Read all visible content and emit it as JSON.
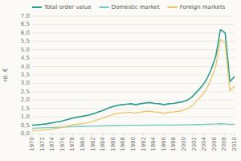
{
  "chart_data": {
    "type": "line",
    "y_label": "rd. €",
    "x": [
      1970,
      1970.9302325581,
      1971.8604651163,
      1972.7906976744,
      1973.7209302326,
      1974.6511627907,
      1975.5813953488,
      1976.511627907,
      1977.4418604651,
      1978.3720930233,
      1979.3023255814,
      1980.2325581395,
      1981.1627906977,
      1982.0930232558,
      1983.023255814,
      1983.9534883721,
      1984.8837209302,
      1985.8139534884,
      1986.7441860465,
      1987.6744186047,
      1988.6046511628,
      1989.5348837209,
      1990.4651162791,
      1991.3953488372,
      1992.3255813953,
      1993.2558139535,
      1994.1860465116,
      1995.1162790698,
      1996.0465116279,
      1996.976744186,
      1997.9069767442,
      1998.8372093023,
      1999.7674418605,
      2000.6976744186,
      2001.6279069767,
      2002.5581395349,
      2003.488372093,
      2004.4186046512,
      2005.3488372093,
      2006.2790697674,
      2007.2093023256,
      2008.1395348837,
      2009.0697674419,
      2010
    ],
    "series": [
      {
        "name": "Total order value",
        "color": "#2a9d8f",
        "values": [
          0.5,
          0.52,
          0.55,
          0.58,
          0.63,
          0.68,
          0.72,
          0.8,
          0.88,
          0.95,
          1.0,
          1.05,
          1.1,
          1.18,
          1.28,
          1.38,
          1.5,
          1.6,
          1.68,
          1.72,
          1.75,
          1.78,
          1.72,
          1.78,
          1.82,
          1.85,
          1.8,
          1.78,
          1.72,
          1.78,
          1.8,
          1.85,
          1.9,
          2.0,
          2.2,
          2.5,
          2.8,
          3.2,
          3.8,
          4.6,
          6.2,
          6.0,
          3.1,
          3.4
        ]
      },
      {
        "name": "Domestic market",
        "color": "#76c8c0",
        "values": [
          0.32,
          0.33,
          0.34,
          0.35,
          0.36,
          0.37,
          0.38,
          0.39,
          0.4,
          0.41,
          0.42,
          0.43,
          0.44,
          0.44,
          0.45,
          0.46,
          0.47,
          0.48,
          0.48,
          0.49,
          0.5,
          0.5,
          0.5,
          0.5,
          0.5,
          0.51,
          0.51,
          0.51,
          0.51,
          0.51,
          0.51,
          0.52,
          0.52,
          0.52,
          0.53,
          0.54,
          0.55,
          0.56,
          0.57,
          0.58,
          0.6,
          0.58,
          0.55,
          0.57
        ]
      },
      {
        "name": "Foreign markets",
        "color": "#e9c46a",
        "values": [
          0.18,
          0.19,
          0.21,
          0.23,
          0.27,
          0.31,
          0.34,
          0.41,
          0.48,
          0.54,
          0.58,
          0.62,
          0.66,
          0.74,
          0.83,
          0.92,
          1.03,
          1.12,
          1.2,
          1.23,
          1.25,
          1.28,
          1.22,
          1.28,
          1.32,
          1.34,
          1.29,
          1.27,
          1.21,
          1.27,
          1.29,
          1.33,
          1.38,
          1.48,
          1.67,
          1.96,
          2.25,
          2.64,
          3.23,
          4.02,
          5.6,
          5.42,
          2.55,
          2.83
        ]
      }
    ],
    "xlim": [
      1970,
      2010
    ],
    "xticks": [
      1970,
      1972,
      1974,
      1976,
      1978,
      1980,
      1982,
      1984,
      1986,
      1988,
      1990,
      1992,
      1994,
      1996,
      1998,
      2000,
      2002,
      2004,
      2006,
      2008,
      2010
    ],
    "ylim": [
      0,
      7
    ],
    "yticks": [
      {
        "value": 0.0,
        "label": "0,0"
      },
      {
        "value": 0.5,
        "label": "0,5"
      },
      {
        "value": 1.0,
        "label": "1,0"
      },
      {
        "value": 1.5,
        "label": "1,5"
      },
      {
        "value": 2.0,
        "label": "2,0"
      },
      {
        "value": 2.5,
        "label": "2,5"
      },
      {
        "value": 3.0,
        "label": "3,0"
      },
      {
        "value": 3.5,
        "label": "3,5"
      },
      {
        "value": 4.0,
        "label": "4,0"
      },
      {
        "value": 4.5,
        "label": "4,5"
      },
      {
        "value": 5.0,
        "label": "5,0"
      },
      {
        "value": 5.5,
        "label": "5,5"
      },
      {
        "value": 6.0,
        "label": "6,0"
      },
      {
        "value": 6.5,
        "label": "6,5"
      },
      {
        "value": 7.0,
        "label": "7,0"
      }
    ],
    "grid": true,
    "legend": "top"
  }
}
